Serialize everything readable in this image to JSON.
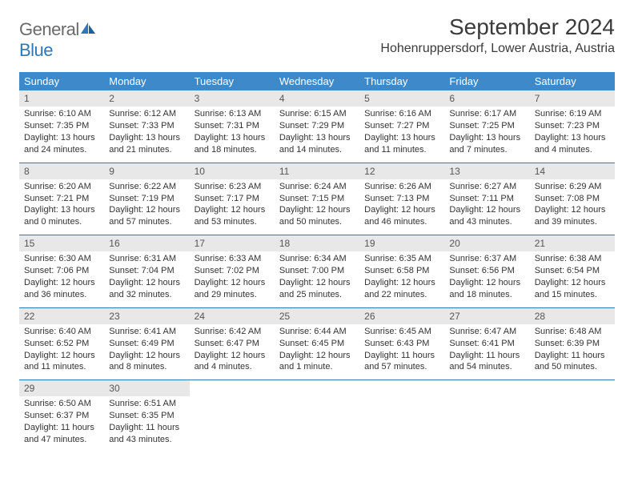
{
  "logo": {
    "word1": "General",
    "word2": "Blue"
  },
  "title": "September 2024",
  "location": "Hohenruppersdorf, Lower Austria, Austria",
  "colors": {
    "header_bg": "#3d89c9",
    "header_text": "#ffffff",
    "daynum_bg": "#e8e8e8",
    "week_border": "#2e77b8",
    "logo_gray": "#6a6a6a",
    "logo_blue": "#2e77b8"
  },
  "dow": [
    "Sunday",
    "Monday",
    "Tuesday",
    "Wednesday",
    "Thursday",
    "Friday",
    "Saturday"
  ],
  "days": [
    {
      "n": "1",
      "sr": "Sunrise: 6:10 AM",
      "ss": "Sunset: 7:35 PM",
      "d1": "Daylight: 13 hours",
      "d2": "and 24 minutes."
    },
    {
      "n": "2",
      "sr": "Sunrise: 6:12 AM",
      "ss": "Sunset: 7:33 PM",
      "d1": "Daylight: 13 hours",
      "d2": "and 21 minutes."
    },
    {
      "n": "3",
      "sr": "Sunrise: 6:13 AM",
      "ss": "Sunset: 7:31 PM",
      "d1": "Daylight: 13 hours",
      "d2": "and 18 minutes."
    },
    {
      "n": "4",
      "sr": "Sunrise: 6:15 AM",
      "ss": "Sunset: 7:29 PM",
      "d1": "Daylight: 13 hours",
      "d2": "and 14 minutes."
    },
    {
      "n": "5",
      "sr": "Sunrise: 6:16 AM",
      "ss": "Sunset: 7:27 PM",
      "d1": "Daylight: 13 hours",
      "d2": "and 11 minutes."
    },
    {
      "n": "6",
      "sr": "Sunrise: 6:17 AM",
      "ss": "Sunset: 7:25 PM",
      "d1": "Daylight: 13 hours",
      "d2": "and 7 minutes."
    },
    {
      "n": "7",
      "sr": "Sunrise: 6:19 AM",
      "ss": "Sunset: 7:23 PM",
      "d1": "Daylight: 13 hours",
      "d2": "and 4 minutes."
    },
    {
      "n": "8",
      "sr": "Sunrise: 6:20 AM",
      "ss": "Sunset: 7:21 PM",
      "d1": "Daylight: 13 hours",
      "d2": "and 0 minutes."
    },
    {
      "n": "9",
      "sr": "Sunrise: 6:22 AM",
      "ss": "Sunset: 7:19 PM",
      "d1": "Daylight: 12 hours",
      "d2": "and 57 minutes."
    },
    {
      "n": "10",
      "sr": "Sunrise: 6:23 AM",
      "ss": "Sunset: 7:17 PM",
      "d1": "Daylight: 12 hours",
      "d2": "and 53 minutes."
    },
    {
      "n": "11",
      "sr": "Sunrise: 6:24 AM",
      "ss": "Sunset: 7:15 PM",
      "d1": "Daylight: 12 hours",
      "d2": "and 50 minutes."
    },
    {
      "n": "12",
      "sr": "Sunrise: 6:26 AM",
      "ss": "Sunset: 7:13 PM",
      "d1": "Daylight: 12 hours",
      "d2": "and 46 minutes."
    },
    {
      "n": "13",
      "sr": "Sunrise: 6:27 AM",
      "ss": "Sunset: 7:11 PM",
      "d1": "Daylight: 12 hours",
      "d2": "and 43 minutes."
    },
    {
      "n": "14",
      "sr": "Sunrise: 6:29 AM",
      "ss": "Sunset: 7:08 PM",
      "d1": "Daylight: 12 hours",
      "d2": "and 39 minutes."
    },
    {
      "n": "15",
      "sr": "Sunrise: 6:30 AM",
      "ss": "Sunset: 7:06 PM",
      "d1": "Daylight: 12 hours",
      "d2": "and 36 minutes."
    },
    {
      "n": "16",
      "sr": "Sunrise: 6:31 AM",
      "ss": "Sunset: 7:04 PM",
      "d1": "Daylight: 12 hours",
      "d2": "and 32 minutes."
    },
    {
      "n": "17",
      "sr": "Sunrise: 6:33 AM",
      "ss": "Sunset: 7:02 PM",
      "d1": "Daylight: 12 hours",
      "d2": "and 29 minutes."
    },
    {
      "n": "18",
      "sr": "Sunrise: 6:34 AM",
      "ss": "Sunset: 7:00 PM",
      "d1": "Daylight: 12 hours",
      "d2": "and 25 minutes."
    },
    {
      "n": "19",
      "sr": "Sunrise: 6:35 AM",
      "ss": "Sunset: 6:58 PM",
      "d1": "Daylight: 12 hours",
      "d2": "and 22 minutes."
    },
    {
      "n": "20",
      "sr": "Sunrise: 6:37 AM",
      "ss": "Sunset: 6:56 PM",
      "d1": "Daylight: 12 hours",
      "d2": "and 18 minutes."
    },
    {
      "n": "21",
      "sr": "Sunrise: 6:38 AM",
      "ss": "Sunset: 6:54 PM",
      "d1": "Daylight: 12 hours",
      "d2": "and 15 minutes."
    },
    {
      "n": "22",
      "sr": "Sunrise: 6:40 AM",
      "ss": "Sunset: 6:52 PM",
      "d1": "Daylight: 12 hours",
      "d2": "and 11 minutes."
    },
    {
      "n": "23",
      "sr": "Sunrise: 6:41 AM",
      "ss": "Sunset: 6:49 PM",
      "d1": "Daylight: 12 hours",
      "d2": "and 8 minutes."
    },
    {
      "n": "24",
      "sr": "Sunrise: 6:42 AM",
      "ss": "Sunset: 6:47 PM",
      "d1": "Daylight: 12 hours",
      "d2": "and 4 minutes."
    },
    {
      "n": "25",
      "sr": "Sunrise: 6:44 AM",
      "ss": "Sunset: 6:45 PM",
      "d1": "Daylight: 12 hours",
      "d2": "and 1 minute."
    },
    {
      "n": "26",
      "sr": "Sunrise: 6:45 AM",
      "ss": "Sunset: 6:43 PM",
      "d1": "Daylight: 11 hours",
      "d2": "and 57 minutes."
    },
    {
      "n": "27",
      "sr": "Sunrise: 6:47 AM",
      "ss": "Sunset: 6:41 PM",
      "d1": "Daylight: 11 hours",
      "d2": "and 54 minutes."
    },
    {
      "n": "28",
      "sr": "Sunrise: 6:48 AM",
      "ss": "Sunset: 6:39 PM",
      "d1": "Daylight: 11 hours",
      "d2": "and 50 minutes."
    },
    {
      "n": "29",
      "sr": "Sunrise: 6:50 AM",
      "ss": "Sunset: 6:37 PM",
      "d1": "Daylight: 11 hours",
      "d2": "and 47 minutes."
    },
    {
      "n": "30",
      "sr": "Sunrise: 6:51 AM",
      "ss": "Sunset: 6:35 PM",
      "d1": "Daylight: 11 hours",
      "d2": "and 43 minutes."
    }
  ]
}
